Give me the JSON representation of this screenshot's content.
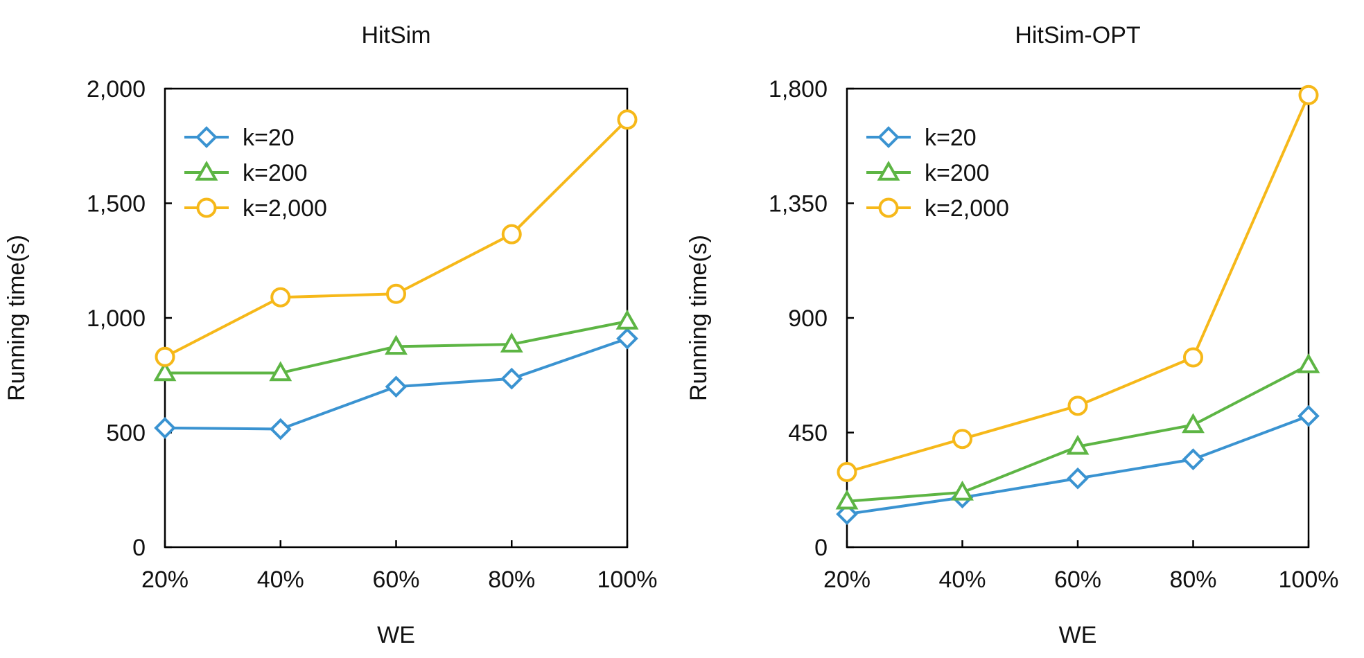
{
  "chart_data": [
    {
      "type": "line",
      "title": "HitSim",
      "xlabel": "WE",
      "ylabel": "Running time(s)",
      "categories": [
        "20%",
        "40%",
        "60%",
        "80%",
        "100%"
      ],
      "ylim": [
        0,
        2000
      ],
      "yticks": [
        0,
        500,
        1000,
        1500,
        2000
      ],
      "ytick_labels": [
        "0",
        "500",
        "1,000",
        "1,500",
        "2,000"
      ],
      "grid": false,
      "legend_position": "top-left",
      "series": [
        {
          "name": "k=20",
          "marker": "diamond",
          "color": "#3a93d1",
          "values": [
            520,
            515,
            700,
            735,
            910
          ]
        },
        {
          "name": "k=200",
          "marker": "triangle",
          "color": "#5db544",
          "values": [
            760,
            760,
            875,
            885,
            985
          ]
        },
        {
          "name": "k=2,000",
          "marker": "circle",
          "color": "#f6b819",
          "values": [
            830,
            1090,
            1105,
            1365,
            1865
          ]
        }
      ]
    },
    {
      "type": "line",
      "title": "HitSim-OPT",
      "xlabel": "WE",
      "ylabel": "Running time(s)",
      "categories": [
        "20%",
        "40%",
        "60%",
        "80%",
        "100%"
      ],
      "ylim": [
        0,
        1800
      ],
      "yticks": [
        0,
        450,
        900,
        1350,
        1800
      ],
      "ytick_labels": [
        "0",
        "450",
        "900",
        "1,350",
        "1,800"
      ],
      "grid": false,
      "legend_position": "top-left",
      "series": [
        {
          "name": "k=20",
          "marker": "diamond",
          "color": "#3a93d1",
          "values": [
            130,
            195,
            270,
            345,
            515
          ]
        },
        {
          "name": "k=200",
          "marker": "triangle",
          "color": "#5db544",
          "values": [
            180,
            215,
            395,
            480,
            715
          ]
        },
        {
          "name": "k=2,000",
          "marker": "circle",
          "color": "#f6b819",
          "values": [
            295,
            425,
            555,
            745,
            1775
          ]
        }
      ]
    }
  ]
}
